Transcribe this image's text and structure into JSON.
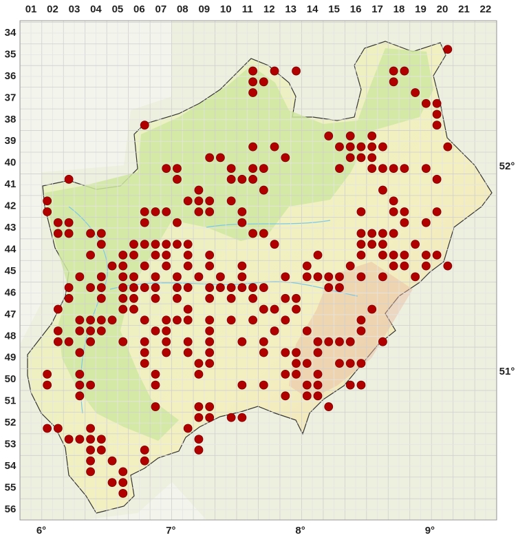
{
  "columns": [
    "01",
    "02",
    "03",
    "04",
    "05",
    "06",
    "07",
    "08",
    "09",
    "10",
    "11",
    "12",
    "13",
    "14",
    "15",
    "16",
    "17",
    "18",
    "19",
    "20",
    "21",
    "22"
  ],
  "rows": [
    "34",
    "35",
    "36",
    "37",
    "38",
    "39",
    "40",
    "41",
    "42",
    "43",
    "44",
    "45",
    "46",
    "47",
    "48",
    "49",
    "50",
    "51",
    "52",
    "53",
    "54",
    "55",
    "56"
  ],
  "longitude_labels": [
    "6°",
    "7°",
    "8°",
    "9°"
  ],
  "latitude_labels": [
    "52°",
    "51°"
  ],
  "dots": [
    {
      "y": 35.25,
      "x": [
        20.75
      ]
    },
    {
      "y": 36.25,
      "x": [
        11.75,
        12.75,
        13.75,
        18.25,
        18.75
      ]
    },
    {
      "y": 36.75,
      "x": [
        11.75,
        12.25,
        18.25
      ]
    },
    {
      "y": 37.25,
      "x": [
        11.75,
        19.25
      ]
    },
    {
      "y": 37.75,
      "x": [
        19.75,
        20.25
      ]
    },
    {
      "y": 38.25,
      "x": [
        20.25
      ]
    },
    {
      "y": 38.75,
      "x": [
        6.75,
        20.25
      ]
    },
    {
      "y": 39.25,
      "x": [
        15.25,
        16.25,
        17.25
      ]
    },
    {
      "y": 39.75,
      "x": [
        11.75,
        12.75,
        15.75,
        16.25,
        16.75,
        17.25,
        17.75,
        20.75
      ]
    },
    {
      "y": 40.25,
      "x": [
        9.75,
        10.25,
        13.25,
        16.25,
        16.75,
        17.25
      ]
    },
    {
      "y": 40.75,
      "x": [
        7.75,
        8.25,
        10.75,
        11.75,
        12.25,
        15.75,
        17.25,
        17.75,
        18.25,
        18.75,
        19.75
      ]
    },
    {
      "y": 41.25,
      "x": [
        3.25,
        8.25,
        10.75,
        11.25,
        11.75,
        20.25
      ]
    },
    {
      "y": 41.75,
      "x": [
        9.25,
        12.25,
        17.75
      ]
    },
    {
      "y": 42.25,
      "x": [
        2.25,
        8.75,
        9.25,
        9.75,
        10.75,
        18.25
      ]
    },
    {
      "y": 42.75,
      "x": [
        2.25,
        6.75,
        7.25,
        7.75,
        9.25,
        9.75,
        11.25,
        16.75,
        18.25,
        18.75,
        20.25
      ]
    },
    {
      "y": 43.25,
      "x": [
        2.75,
        3.25,
        6.75,
        8.25,
        11.25,
        18.75,
        19.75
      ]
    },
    {
      "y": 43.75,
      "x": [
        2.75,
        3.25,
        4.25,
        4.75,
        11.75,
        12.25,
        16.75,
        17.25,
        17.75,
        18.25
      ]
    },
    {
      "y": 44.25,
      "x": [
        4.75,
        6.25,
        6.75,
        7.25,
        7.75,
        8.25,
        8.75,
        12.75,
        16.75,
        17.25,
        17.75,
        19.25
      ]
    },
    {
      "y": 44.75,
      "x": [
        4.25,
        5.75,
        6.25,
        7.25,
        7.75,
        8.75,
        9.75,
        14.75,
        16.75,
        17.75,
        18.25,
        18.75,
        19.75,
        20.25
      ]
    },
    {
      "y": 45.25,
      "x": [
        5.25,
        5.75,
        6.75,
        7.75,
        8.75,
        9.75,
        11.25,
        14.25,
        16.25,
        18.25,
        18.75,
        19.75,
        20.75
      ]
    },
    {
      "y": 45.75,
      "x": [
        3.75,
        4.75,
        5.75,
        6.25,
        7.25,
        8.25,
        9.25,
        10.25,
        11.25,
        13.25,
        14.25,
        14.75,
        15.25,
        15.75,
        16.75,
        17.75,
        19.25
      ]
    },
    {
      "y": 46.25,
      "x": [
        3.25,
        4.25,
        4.75,
        5.75,
        6.25,
        6.75,
        7.25,
        8.25,
        8.75,
        9.75,
        10.25,
        10.75,
        11.25,
        11.75,
        12.25,
        15.25,
        15.75
      ]
    },
    {
      "y": 46.75,
      "x": [
        3.25,
        4.75,
        5.75,
        6.25,
        7.25,
        8.25,
        9.75,
        10.75,
        11.75,
        13.25,
        13.75
      ]
    },
    {
      "y": 47.25,
      "x": [
        2.75,
        5.75,
        6.25,
        8.75,
        12.25,
        12.75,
        13.75,
        17.25
      ]
    },
    {
      "y": 47.75,
      "x": [
        3.75,
        4.25,
        4.75,
        5.25,
        6.75,
        7.75,
        8.25,
        8.75,
        9.75,
        10.75,
        11.75,
        13.25,
        16.75
      ]
    },
    {
      "y": 48.25,
      "x": [
        2.75,
        3.75,
        4.25,
        4.75,
        7.25,
        7.75,
        9.75,
        12.75,
        14.25,
        16.75
      ]
    },
    {
      "y": 48.75,
      "x": [
        2.75,
        3.25,
        4.25,
        5.75,
        6.75,
        7.75,
        8.75,
        9.75,
        11.25,
        12.25,
        14.75,
        15.25,
        15.75,
        16.25,
        17.75
      ]
    },
    {
      "y": 49.25,
      "x": [
        3.75,
        6.75,
        7.75,
        8.75,
        9.75,
        12.25,
        13.25,
        13.75,
        14.75
      ]
    },
    {
      "y": 49.75,
      "x": [
        6.75,
        9.25,
        9.75,
        13.75,
        14.25,
        15.75,
        16.25,
        16.75
      ]
    },
    {
      "y": 50.25,
      "x": [
        2.25,
        3.75,
        7.25,
        9.25,
        13.25,
        13.75,
        14.75
      ]
    },
    {
      "y": 50.75,
      "x": [
        2.25,
        3.75,
        4.25,
        7.25,
        11.25,
        12.25,
        14.25,
        14.75,
        16.25,
        16.75
      ]
    },
    {
      "y": 51.25,
      "x": [
        3.75,
        13.25,
        14.25,
        14.75
      ]
    },
    {
      "y": 51.75,
      "x": [
        7.25,
        9.25,
        9.75,
        15.25
      ]
    },
    {
      "y": 52.25,
      "x": [
        9.25,
        9.75,
        10.75,
        11.25
      ]
    },
    {
      "y": 52.75,
      "x": [
        2.25,
        2.75,
        4.25,
        8.75
      ]
    },
    {
      "y": 53.25,
      "x": [
        3.25,
        3.75,
        4.25,
        4.75,
        9.25
      ]
    },
    {
      "y": 53.75,
      "x": [
        4.25,
        4.75,
        6.75,
        9.25
      ]
    },
    {
      "y": 54.25,
      "x": [
        4.25,
        5.25,
        6.75
      ]
    },
    {
      "y": 54.75,
      "x": [
        4.25,
        5.75
      ]
    },
    {
      "y": 55.25,
      "x": [
        5.25,
        5.75
      ]
    },
    {
      "y": 55.75,
      "x": [
        5.75
      ]
    }
  ]
}
